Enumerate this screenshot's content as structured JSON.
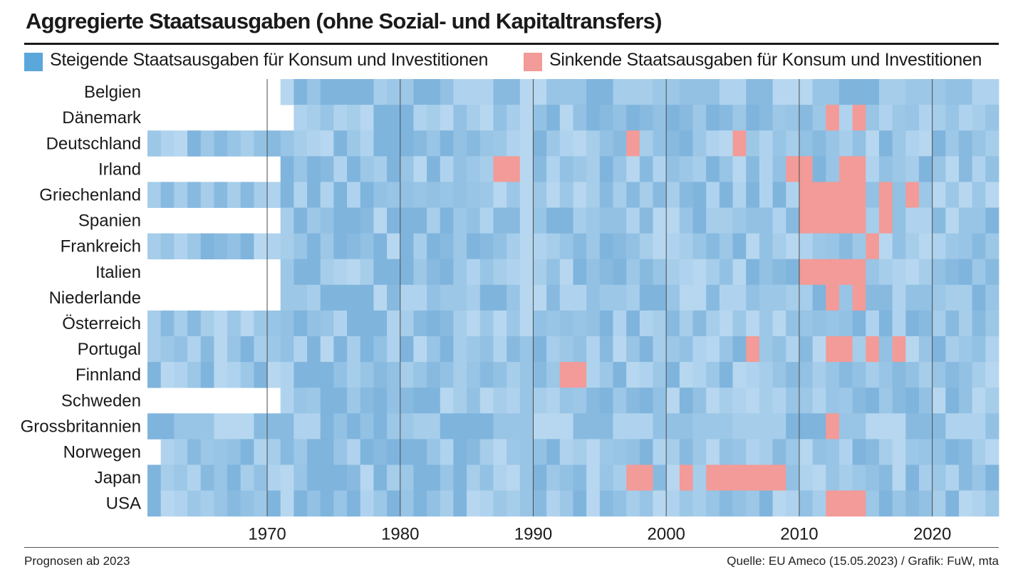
{
  "title": "Aggregierte Staatsausgaben (ohne Sozial- und Kapitaltransfers)",
  "legend": {
    "rising": {
      "label": "Steigende Staatsausgaben für Konsum und Investitionen",
      "color": "#5aa7dc"
    },
    "falling": {
      "label": "Sinkende Staatsausgaben für Konsum und Investitionen",
      "color": "#f29b98"
    }
  },
  "footer": {
    "left": "Prognosen ab 2023",
    "right": "Quelle: EU Ameco (15.05.2023) / Grafik: FuW, mta"
  },
  "chart_data": {
    "type": "heatmap",
    "x_start": 1961,
    "x_end": 2024,
    "x_ticks": [
      "1970",
      "1980",
      "1990",
      "2000",
      "2010",
      "2020"
    ],
    "rows": [
      {
        "name": "Belgien",
        "data_start": 1971,
        "sinkend": []
      },
      {
        "name": "Dänemark",
        "data_start": 1972,
        "sinkend": [
          2012,
          2014
        ]
      },
      {
        "name": "Deutschland",
        "data_start": 1961,
        "sinkend": [
          1997,
          2005
        ]
      },
      {
        "name": "Irland",
        "data_start": 1971,
        "sinkend": [
          1987,
          1988,
          2009,
          2010,
          2013,
          2014
        ]
      },
      {
        "name": "Griechenland",
        "data_start": 1961,
        "sinkend": [
          2010,
          2011,
          2012,
          2013,
          2014,
          2016,
          2018
        ]
      },
      {
        "name": "Spanien",
        "data_start": 1971,
        "sinkend": [
          2010,
          2011,
          2012,
          2013,
          2014,
          2016
        ]
      },
      {
        "name": "Frankreich",
        "data_start": 1961,
        "sinkend": [
          2015
        ]
      },
      {
        "name": "Italien",
        "data_start": 1971,
        "sinkend": [
          2010,
          2011,
          2012,
          2013,
          2014
        ]
      },
      {
        "name": "Niederlande",
        "data_start": 1971,
        "sinkend": [
          2012,
          2014
        ]
      },
      {
        "name": "Österreich",
        "data_start": 1961,
        "sinkend": []
      },
      {
        "name": "Portugal",
        "data_start": 1961,
        "sinkend": [
          2006,
          2012,
          2013,
          2015,
          2017
        ]
      },
      {
        "name": "Finnland",
        "data_start": 1961,
        "sinkend": [
          1992,
          1993
        ]
      },
      {
        "name": "Schweden",
        "data_start": 1971,
        "sinkend": []
      },
      {
        "name": "Grossbritannien",
        "data_start": 1961,
        "sinkend": [
          2012
        ]
      },
      {
        "name": "Norwegen",
        "data_start": 1962,
        "sinkend": []
      },
      {
        "name": "Japan",
        "data_start": 1961,
        "sinkend": [
          1997,
          1998,
          2001,
          2003,
          2004,
          2005,
          2006,
          2007,
          2008
        ]
      },
      {
        "name": "USA",
        "data_start": 1961,
        "sinkend": [
          2012,
          2013,
          2014
        ]
      }
    ]
  }
}
